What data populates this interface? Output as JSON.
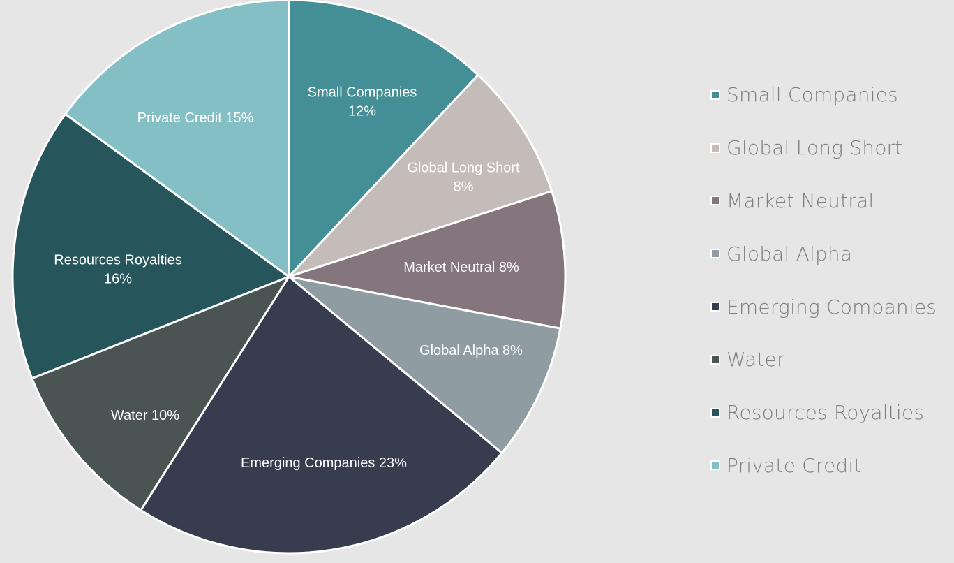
{
  "chart_data": {
    "type": "pie",
    "title": "",
    "legend_position": "right",
    "slices": [
      {
        "name": "Small Companies",
        "value": 12,
        "color": "#448e96",
        "label_lines": [
          "Small Companies",
          "12%"
        ]
      },
      {
        "name": "Global Long Short",
        "value": 8,
        "color": "#c4bcb8",
        "label_lines": [
          "Global Long Short",
          "8%"
        ]
      },
      {
        "name": "Market Neutral",
        "value": 8,
        "color": "#85757c",
        "label_lines": [
          "Market Neutral 8%"
        ]
      },
      {
        "name": "Global Alpha",
        "value": 8,
        "color": "#8f9da3",
        "label_lines": [
          "Global Alpha 8%"
        ]
      },
      {
        "name": "Emerging Companies",
        "value": 23,
        "color": "#373c4f",
        "label_lines": [
          "Emerging Companies 23%"
        ]
      },
      {
        "name": "Water",
        "value": 10,
        "color": "#4a5553",
        "label_lines": [
          "Water 10%"
        ]
      },
      {
        "name": "Resources Royalties",
        "value": 16,
        "color": "#26555b",
        "label_lines": [
          "Resources Royalties",
          "16%"
        ]
      },
      {
        "name": "Private Credit",
        "value": 15,
        "color": "#85bfc6",
        "label_lines": [
          "Private Credit  15%"
        ]
      }
    ]
  }
}
